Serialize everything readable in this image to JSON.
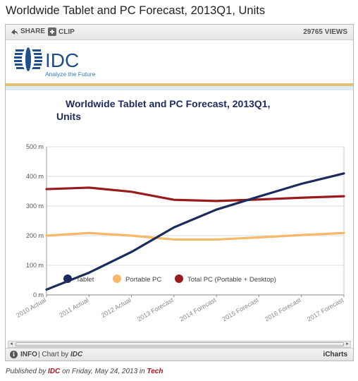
{
  "page": {
    "title": "Worldwide Tablet and PC Forecast, 2013Q1, Units"
  },
  "toolbar": {
    "share_label": "SHARE",
    "clip_label": "CLIP",
    "views": "29765 VIEWS"
  },
  "logo": {
    "text": "IDC",
    "tagline": "Analyze the Future"
  },
  "footer": {
    "info_label": "INFO",
    "chart_by_prefix": "| Chart by",
    "chart_by_brand": "IDC",
    "brand_right": "iCharts"
  },
  "published": {
    "prefix": "Published by",
    "publisher": "IDC",
    "middle": "on Friday, May 24, 2013 in",
    "category": "Tech"
  },
  "colors": {
    "tablet": "#1c2a5c",
    "portable": "#f6b968",
    "total": "#991b1e",
    "accent_band": "#e3c16e"
  },
  "chart_data": {
    "type": "line",
    "title_lines": [
      "Worldwide Tablet and PC Forecast, 2013Q1,",
      "Units"
    ],
    "categories": [
      "2010 Actual",
      "2011 Actual",
      "2012 Actual",
      "2013 Forecast",
      "2014 Forecast",
      "2015 Forecast",
      "2016 Forecast",
      "2017 Forecast"
    ],
    "yticks": [
      "0 m",
      "100 m",
      "200 m",
      "300 m",
      "400 m",
      "500 m"
    ],
    "ylim": [
      0,
      500
    ],
    "grid": true,
    "legend_position": "bottom",
    "series": [
      {
        "name": "Tablet",
        "color": "#1c2a5c",
        "values": [
          18,
          75,
          145,
          228,
          288,
          332,
          375,
          410
        ]
      },
      {
        "name": "Portable PC",
        "color": "#f6b968",
        "values": [
          200,
          209,
          200,
          187,
          187,
          194,
          202,
          209
        ]
      },
      {
        "name": "Total PC (Portable + Desktop)",
        "color": "#991b1e",
        "values": [
          357,
          362,
          348,
          321,
          317,
          322,
          328,
          333
        ]
      }
    ]
  }
}
